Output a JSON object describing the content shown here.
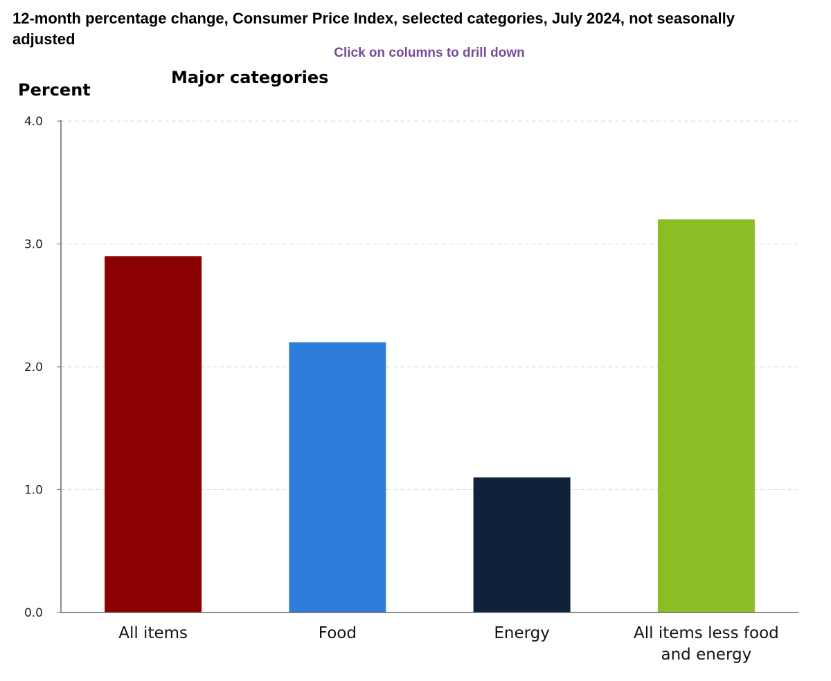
{
  "chart_data": {
    "type": "bar",
    "title": "12-month percentage change, Consumer Price Index, selected categories, July 2024, not seasonally adjusted",
    "instruction": "Click on columns to drill down",
    "subtitle": "Major categories",
    "ylabel": "Percent",
    "xlabel": "",
    "ylim": [
      0,
      4
    ],
    "yticks": [
      "0.0",
      "1.0",
      "2.0",
      "3.0",
      "4.0"
    ],
    "categories": [
      "All items",
      "Food",
      "Energy",
      "All items less food and energy"
    ],
    "category_lines": [
      [
        "All items"
      ],
      [
        "Food"
      ],
      [
        "Energy"
      ],
      [
        "All items less food",
        "and energy"
      ]
    ],
    "values": [
      2.9,
      2.2,
      1.1,
      3.2
    ],
    "grid": true,
    "legend": "none",
    "colors": {
      "bars": [
        "#8b0000",
        "#2f7ddb",
        "#10223a",
        "#8bbd24"
      ],
      "instruction": "#7a4a98",
      "gridline": "#d9d9d9",
      "axis": "#666666"
    }
  }
}
